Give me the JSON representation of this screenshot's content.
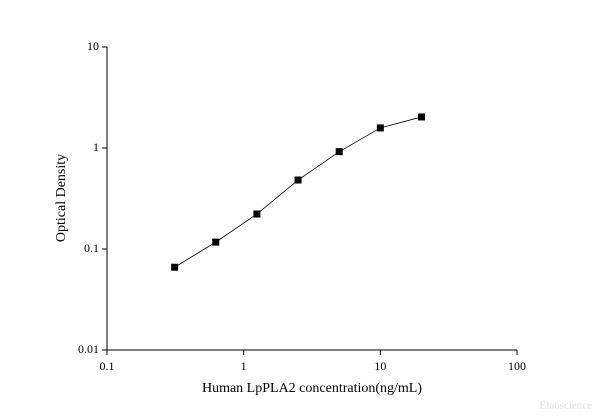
{
  "chart_data": {
    "type": "line",
    "xlabel": "Human LpPLA2 concentration(ng/mL)",
    "ylabel": "Optical Density",
    "x": [
      0.3125,
      0.625,
      1.25,
      2.5,
      5,
      10,
      20
    ],
    "series": [
      {
        "color": "#000000",
        "values": [
          0.066,
          0.117,
          0.222,
          0.482,
          0.92,
          1.58,
          2.03
        ]
      }
    ],
    "xlim": [
      0.1,
      100
    ],
    "xticks": [
      0.1,
      1,
      10,
      100
    ],
    "ylim": [
      0.01,
      10
    ],
    "yticks": [
      0.01,
      0.1,
      1,
      10
    ],
    "xscale": "log",
    "yscale": "log",
    "watermark": "Elabscience"
  }
}
